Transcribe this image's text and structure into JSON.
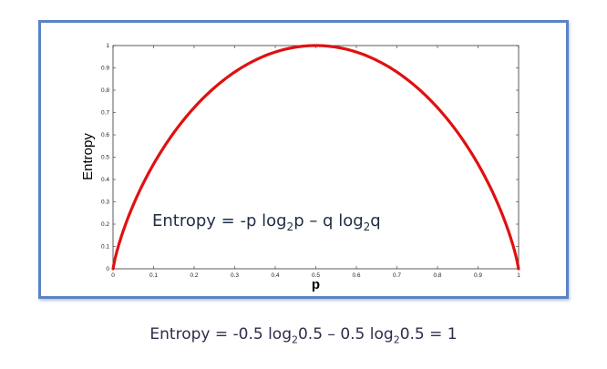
{
  "chart_data": {
    "type": "line",
    "xlabel": "p",
    "ylabel": "Entropy",
    "xlim": [
      0,
      1
    ],
    "ylim": [
      0,
      1
    ],
    "x_ticks": [
      "0",
      "0.1",
      "0.2",
      "0.3",
      "0.4",
      "0.5",
      "0.6",
      "0.7",
      "0.8",
      "0.9",
      "1"
    ],
    "y_ticks": [
      "0",
      "0.1",
      "0.2",
      "0.3",
      "0.4",
      "0.5",
      "0.6",
      "0.7",
      "0.8",
      "0.9",
      "1"
    ],
    "series": [
      {
        "function": "-p log2 p - (1-p) log2(1-p)",
        "color": "#e01010",
        "x": [
          0,
          0.05,
          0.1,
          0.15,
          0.2,
          0.25,
          0.3,
          0.35,
          0.4,
          0.45,
          0.5,
          0.55,
          0.6,
          0.65,
          0.7,
          0.75,
          0.8,
          0.85,
          0.9,
          0.95,
          1
        ],
        "y": [
          0,
          0.286,
          0.469,
          0.61,
          0.722,
          0.811,
          0.881,
          0.934,
          0.971,
          0.993,
          1,
          0.993,
          0.971,
          0.934,
          0.881,
          0.811,
          0.722,
          0.61,
          0.469,
          0.286,
          0
        ]
      }
    ],
    "annotation": {
      "parts": [
        "Entropy  = -p log",
        "2",
        "p – q log",
        "2",
        "q"
      ]
    }
  },
  "caption": {
    "parts": [
      "Entropy = -0.5 log",
      "2",
      "0.5 – 0.5 log",
      "2",
      "0.5 = 1"
    ]
  },
  "colors": {
    "frame_border": "#5b82c6",
    "curve": "#e01010"
  }
}
